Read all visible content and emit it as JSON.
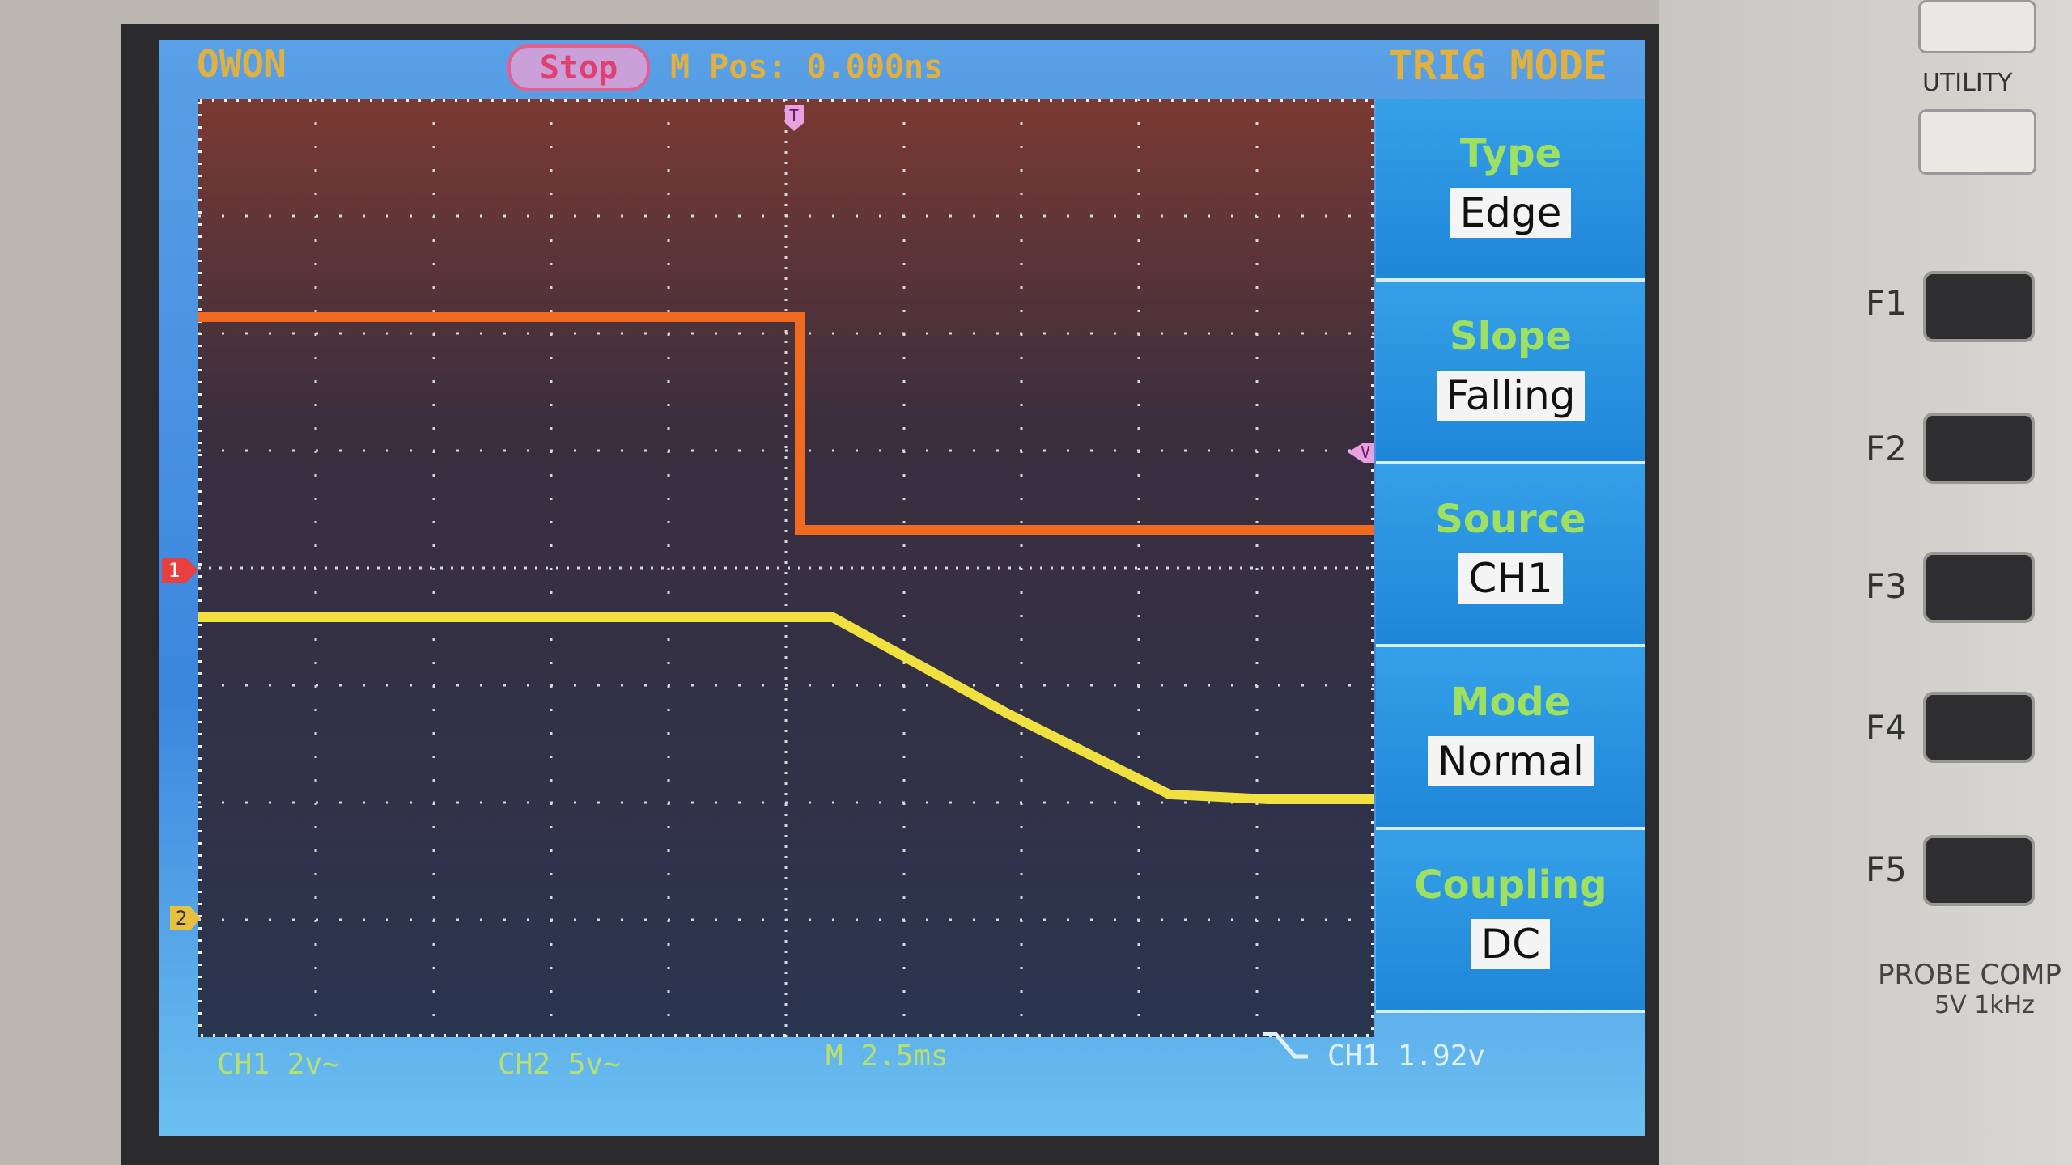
{
  "header": {
    "brand": "OWON",
    "status": "Stop",
    "position": "M Pos: 0.000ns",
    "menu_title": "TRIG MODE"
  },
  "menu": [
    {
      "label": "Type",
      "value": "Edge"
    },
    {
      "label": "Slope",
      "value": "Falling"
    },
    {
      "label": "Source",
      "value": "CH1"
    },
    {
      "label": "Mode",
      "value": "Normal"
    },
    {
      "label": "Coupling",
      "value": "DC"
    }
  ],
  "footer": {
    "ch1": "CH1 2v~",
    "ch2": "CH2 5v~",
    "timebase": "M 2.5ms",
    "trigger": "CH1 1.92v"
  },
  "markers": {
    "ch1": "1",
    "ch2": "2",
    "trigger_pos": "T",
    "trigger_level": "V"
  },
  "panel": {
    "utility": "UTILITY",
    "buttons": [
      "F1",
      "F2",
      "F3",
      "F4",
      "F5"
    ],
    "probe_comp": "PROBE COMP",
    "probe_spec": "5V 1kHz"
  }
}
